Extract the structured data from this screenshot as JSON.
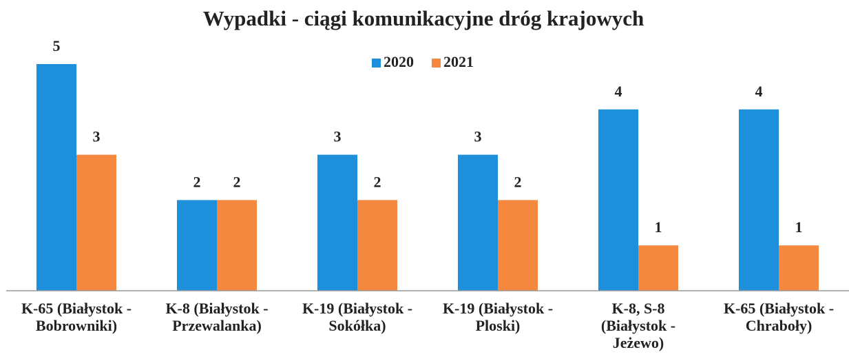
{
  "chart_data": {
    "type": "bar",
    "title": "Wypadki - ciągi komunikacyjne dróg krajowych",
    "categories": [
      "K-65 (Białystok - Bobrowniki)",
      "K-8 (Białystok - Przewalanka)",
      "K-19 (Białystok - Sokółka)",
      "K-19 (Białystok - Ploski)",
      "K-8, S-8 (Białystok - Jeżewo)",
      "K-65 (Białystok - Chraboły)"
    ],
    "series": [
      {
        "name": "2020",
        "color": "#1e8fda",
        "values": [
          5,
          2,
          3,
          3,
          4,
          4
        ]
      },
      {
        "name": "2021",
        "color": "#f5883f",
        "values": [
          3,
          2,
          2,
          2,
          1,
          1
        ]
      }
    ],
    "ylim": [
      0,
      5
    ],
    "legend": "top"
  }
}
